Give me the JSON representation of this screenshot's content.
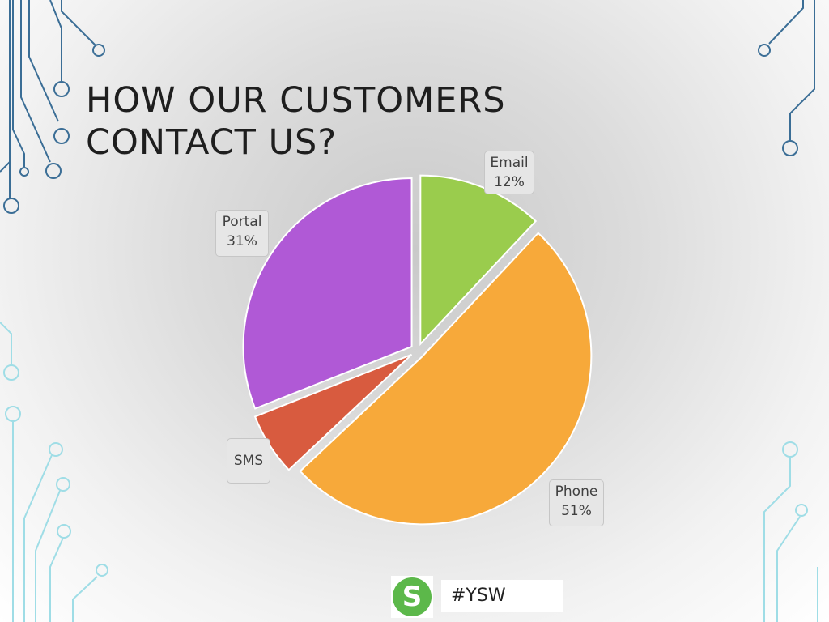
{
  "slide": {
    "title_lines": [
      "HOW OUR CUSTOMERS",
      "CONTACT US?"
    ],
    "footer": {
      "logo_letter": "S",
      "hashtag": "#YSW"
    }
  },
  "chart_data": {
    "type": "pie",
    "title": "HOW OUR CUSTOMERS CONTACT US?",
    "labels": [
      "Email",
      "Phone",
      "SMS",
      "Portal"
    ],
    "values": [
      12,
      51,
      6,
      31
    ],
    "value_labels": [
      "12%",
      "51%",
      "",
      "31%"
    ],
    "colors": [
      "#9acc4d",
      "#f7a93a",
      "#d85b3f",
      "#b059d6"
    ],
    "exploded": true,
    "legend": "none (data callouts)"
  },
  "colors": {
    "circuit_dark": "#3b6e96",
    "circuit_light": "#9fdde6",
    "slice_border": "#ffffff"
  },
  "icons": {
    "footer_logo": "s-letter-logo",
    "decoration": "circuit-lines"
  }
}
